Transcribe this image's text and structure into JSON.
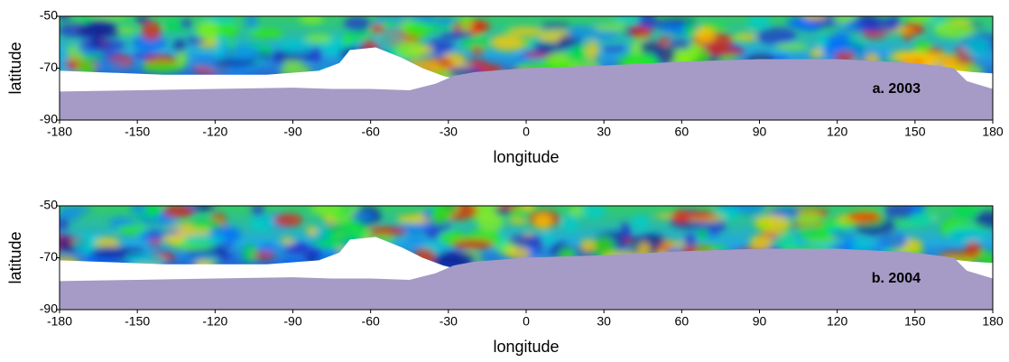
{
  "panels": [
    {
      "label": "a. 2003",
      "x_label": "longitude",
      "y_label": "latitude",
      "xlim": [
        -180,
        180
      ],
      "xticks": [
        -180,
        -150,
        -120,
        -90,
        -60,
        -30,
        0,
        30,
        60,
        90,
        120,
        150,
        180
      ],
      "ylim": [
        -90,
        -50
      ],
      "yticks": [
        -50,
        -70,
        -90
      ]
    },
    {
      "label": "b. 2004",
      "x_label": "longitude",
      "y_label": "latitude",
      "xlim": [
        -180,
        180
      ],
      "xticks": [
        -180,
        -150,
        -120,
        -90,
        -60,
        -30,
        0,
        30,
        60,
        90,
        120,
        150,
        180
      ],
      "ylim": [
        -90,
        -50
      ],
      "yticks": [
        -50,
        -70,
        -90
      ]
    }
  ]
}
